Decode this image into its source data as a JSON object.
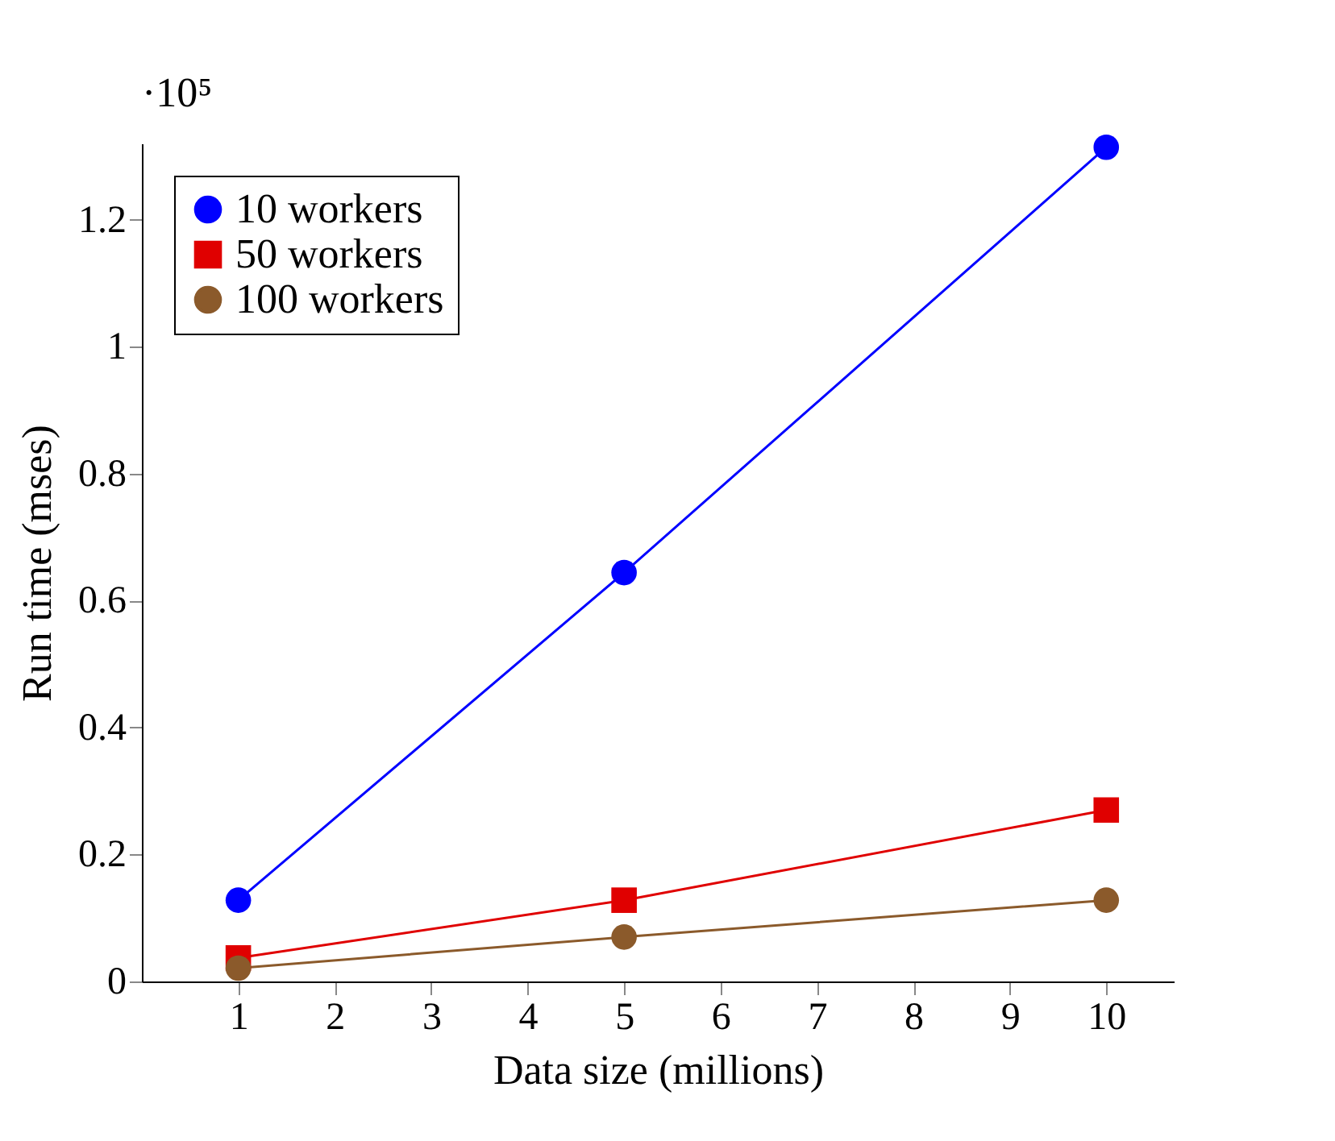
{
  "chart_data": {
    "type": "line",
    "xlabel": "Data size (millions)",
    "ylabel": "Run time (mses)",
    "annotations": [
      "·10⁵"
    ],
    "x": [
      1,
      5,
      10
    ],
    "xlim": [
      0,
      10.7
    ],
    "xticks": [
      1,
      2,
      3,
      4,
      5,
      6,
      7,
      8,
      9,
      10
    ],
    "ylim": [
      0,
      1.32
    ],
    "yticks": [
      0,
      0.2,
      0.4,
      0.6,
      0.8,
      1,
      1.2
    ],
    "legend": "top left",
    "grid": false,
    "series": [
      {
        "name": "10 workers",
        "color": "#0000ff",
        "marker": "circle",
        "values": [
          0.128,
          0.644,
          1.314
        ]
      },
      {
        "name": "50 workers",
        "color": "#e00000",
        "marker": "square",
        "values": [
          0.037,
          0.128,
          0.27
        ]
      },
      {
        "name": "100 workers",
        "color": "#8b5a2b",
        "marker": "circle",
        "values": [
          0.021,
          0.07,
          0.128
        ]
      }
    ]
  }
}
